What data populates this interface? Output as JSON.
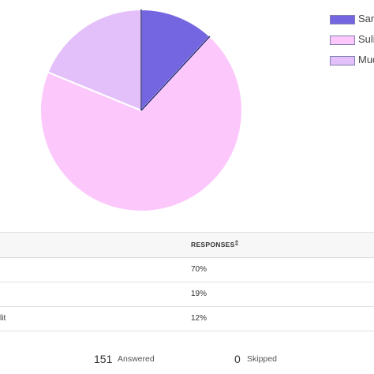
{
  "chart_data": {
    "type": "pie",
    "slices": [
      {
        "label": "Sam",
        "value": 12,
        "color": "#7466e0"
      },
      {
        "label": "Suli",
        "value": 70,
        "color": "#fcc8fc"
      },
      {
        "label": "Mud",
        "value": 19,
        "color": "#e4c0fa"
      }
    ]
  },
  "table": {
    "header": {
      "responses": "RESPONSES",
      "sort_icon": "sort-icon"
    },
    "rows": [
      {
        "label": "",
        "responses": "70%"
      },
      {
        "label": "",
        "responses": "19%"
      },
      {
        "label": "lit",
        "responses": "12%"
      }
    ]
  },
  "summary": {
    "answered_count": "151",
    "answered_label": "Answered",
    "skipped_count": "0",
    "skipped_label": "Skipped"
  }
}
